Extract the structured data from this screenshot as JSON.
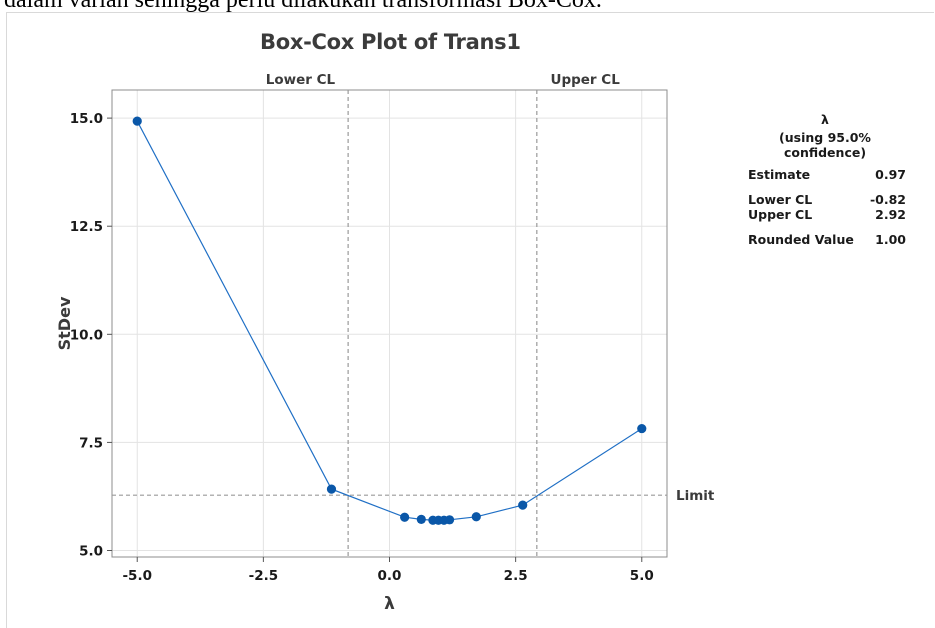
{
  "page": {
    "top_text": "dalam varian sehingga perlu dilakukan transformasi Box-Cox."
  },
  "chart_data": {
    "type": "line",
    "title": "Box-Cox Plot of Trans1",
    "xlabel": "λ",
    "ylabel": "StDev",
    "xlim": [
      -5.5,
      5.5
    ],
    "ylim": [
      4.85,
      15.65
    ],
    "x_ticks": [
      -5.0,
      -2.5,
      0.0,
      2.5,
      5.0
    ],
    "x_tick_labels": [
      "-5.0",
      "-2.5",
      "0.0",
      "2.5",
      "5.0"
    ],
    "y_ticks": [
      5.0,
      7.5,
      10.0,
      12.5,
      15.0
    ],
    "y_tick_labels": [
      "5.0",
      "7.5",
      "10.0",
      "12.5",
      "15.0"
    ],
    "grid": true,
    "series": [
      {
        "x": [
          -5.0,
          -1.15,
          0.3,
          0.63,
          0.86,
          0.97,
          1.08,
          1.19,
          1.72,
          2.64,
          5.0
        ],
        "y": [
          14.93,
          6.42,
          5.77,
          5.72,
          5.7,
          5.7,
          5.7,
          5.71,
          5.78,
          6.05,
          7.82
        ]
      }
    ],
    "reference_lines": {
      "vertical": [
        {
          "x": -0.82,
          "label": "Lower CL"
        },
        {
          "x": 2.92,
          "label": "Upper CL"
        }
      ],
      "horizontal": [
        {
          "y": 6.28,
          "label": "Limit"
        }
      ]
    },
    "line_color": "#1f6fc5",
    "marker_color": "#0a57a8",
    "legend": "top-right"
  },
  "legend_box": {
    "header": "λ",
    "subheader": "(using 95.0% confidence)",
    "estimate_label": "Estimate",
    "estimate_value": "0.97",
    "lower_label": "Lower CL",
    "lower_value": "-0.82",
    "upper_label": "Upper CL",
    "upper_value": "2.92",
    "rounded_label": "Rounded Value",
    "rounded_value": "1.00"
  }
}
